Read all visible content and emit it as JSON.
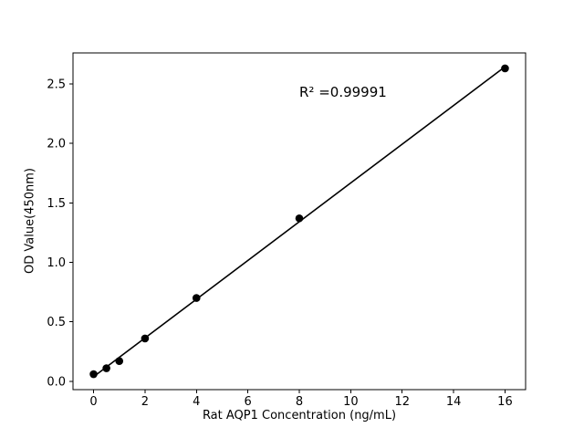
{
  "chart_data": {
    "type": "scatter",
    "title": "",
    "xlabel": "Rat AQP1 Concentration (ng/mL)",
    "ylabel": "OD Value(450nm)",
    "x": [
      0,
      0.5,
      1,
      2,
      4,
      8,
      16
    ],
    "y": [
      0.06,
      0.11,
      0.17,
      0.36,
      0.7,
      1.37,
      2.63
    ],
    "xticks": [
      0,
      2,
      4,
      6,
      8,
      10,
      12,
      14,
      16
    ],
    "yticks": [
      0,
      0.5,
      1,
      1.5,
      2,
      2.5
    ],
    "xlim": [
      -0.8,
      16.8
    ],
    "ylim": [
      -0.07,
      2.76
    ],
    "annotation": "R² =0.99991",
    "fit": "linear",
    "marker_color": "#000000",
    "line_color": "#000000",
    "background": "#ffffff",
    "grid": false,
    "legend": false
  }
}
